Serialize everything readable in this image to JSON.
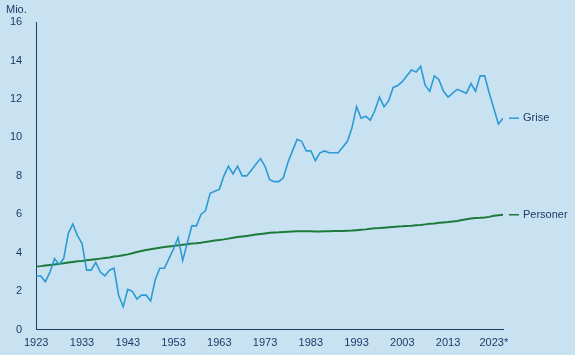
{
  "chart_data": {
    "type": "line",
    "ylabel": "Mio.",
    "x": [
      1923,
      1924,
      1925,
      1926,
      1927,
      1928,
      1929,
      1930,
      1931,
      1932,
      1933,
      1934,
      1935,
      1936,
      1937,
      1938,
      1939,
      1940,
      1941,
      1942,
      1943,
      1944,
      1945,
      1946,
      1947,
      1948,
      1949,
      1950,
      1951,
      1952,
      1953,
      1954,
      1955,
      1956,
      1957,
      1958,
      1959,
      1960,
      1961,
      1962,
      1963,
      1964,
      1965,
      1966,
      1967,
      1968,
      1969,
      1970,
      1971,
      1972,
      1973,
      1974,
      1975,
      1976,
      1977,
      1978,
      1979,
      1980,
      1981,
      1982,
      1983,
      1984,
      1985,
      1986,
      1987,
      1988,
      1989,
      1990,
      1991,
      1992,
      1993,
      1994,
      1995,
      1996,
      1997,
      1998,
      1999,
      2000,
      2001,
      2002,
      2003,
      2004,
      2005,
      2006,
      2007,
      2008,
      2009,
      2010,
      2011,
      2012,
      2013,
      2014,
      2015,
      2016,
      2017,
      2018,
      2019,
      2020,
      2021,
      2022,
      2023,
      2024,
      2025
    ],
    "series": [
      {
        "name": "Grise",
        "color": "#2c9ad3",
        "values": [
          2.8,
          2.8,
          2.5,
          3.0,
          3.7,
          3.4,
          3.7,
          5.0,
          5.5,
          4.9,
          4.5,
          3.1,
          3.1,
          3.5,
          3.0,
          2.8,
          3.1,
          3.2,
          1.8,
          1.2,
          2.1,
          2.0,
          1.6,
          1.8,
          1.8,
          1.5,
          2.6,
          3.2,
          3.2,
          3.7,
          4.2,
          4.8,
          3.6,
          4.5,
          5.4,
          5.4,
          6.0,
          6.2,
          7.1,
          7.2,
          7.3,
          8.0,
          8.5,
          8.1,
          8.5,
          8.0,
          8.0,
          8.3,
          8.6,
          8.9,
          8.5,
          7.8,
          7.7,
          7.7,
          7.9,
          8.7,
          9.3,
          9.9,
          9.8,
          9.3,
          9.3,
          8.8,
          9.2,
          9.3,
          9.2,
          9.2,
          9.2,
          9.5,
          9.8,
          10.5,
          11.6,
          11.0,
          11.1,
          10.9,
          11.4,
          12.1,
          11.6,
          11.9,
          12.6,
          12.7,
          12.9,
          13.2,
          13.5,
          13.4,
          13.7,
          12.7,
          12.4,
          13.2,
          13.0,
          12.4,
          12.1,
          12.3,
          12.5,
          12.4,
          12.3,
          12.8,
          12.4,
          13.2,
          13.2,
          12.3,
          11.5,
          10.7,
          11.0
        ]
      },
      {
        "name": "Personer",
        "color": "#1d7a3a",
        "values": [
          3.29,
          3.31,
          3.34,
          3.37,
          3.4,
          3.43,
          3.46,
          3.5,
          3.53,
          3.56,
          3.58,
          3.61,
          3.64,
          3.67,
          3.7,
          3.73,
          3.76,
          3.81,
          3.84,
          3.88,
          3.92,
          3.98,
          4.04,
          4.1,
          4.15,
          4.19,
          4.23,
          4.27,
          4.3,
          4.33,
          4.36,
          4.39,
          4.42,
          4.45,
          4.48,
          4.5,
          4.53,
          4.57,
          4.6,
          4.64,
          4.67,
          4.7,
          4.74,
          4.78,
          4.82,
          4.85,
          4.88,
          4.91,
          4.95,
          4.98,
          5.01,
          5.04,
          5.06,
          5.07,
          5.09,
          5.1,
          5.11,
          5.12,
          5.12,
          5.12,
          5.12,
          5.11,
          5.11,
          5.12,
          5.12,
          5.13,
          5.13,
          5.14,
          5.15,
          5.16,
          5.18,
          5.2,
          5.22,
          5.25,
          5.28,
          5.29,
          5.31,
          5.33,
          5.35,
          5.37,
          5.38,
          5.4,
          5.41,
          5.43,
          5.45,
          5.48,
          5.51,
          5.53,
          5.56,
          5.58,
          5.6,
          5.63,
          5.66,
          5.71,
          5.75,
          5.78,
          5.81,
          5.82,
          5.84,
          5.87,
          5.93,
          5.96,
          5.98
        ]
      }
    ],
    "xlim": [
      1923,
      2025
    ],
    "xticks": [
      1923,
      1933,
      1943,
      1953,
      1963,
      1973,
      1983,
      1993,
      2003,
      2013,
      {
        "value": 2023,
        "label": "2023*"
      }
    ],
    "ylim": [
      0,
      16
    ],
    "yticks": [
      0,
      2,
      4,
      6,
      8,
      10,
      12,
      14,
      16
    ],
    "grid": false
  }
}
